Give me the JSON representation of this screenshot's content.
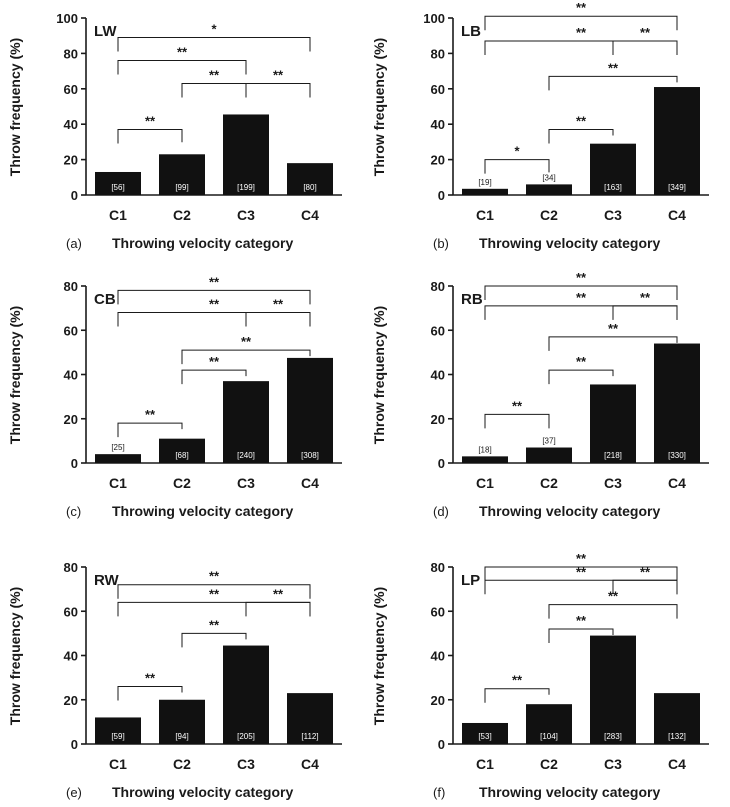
{
  "chart_data": [
    {
      "type": "bar",
      "panel_letter": "(a)",
      "label": "LW",
      "categories": [
        "C1",
        "C2",
        "C3",
        "C4"
      ],
      "values": [
        13,
        23,
        45.5,
        18
      ],
      "counts": [
        "[56]",
        "[99]",
        "[199]",
        "[80]"
      ],
      "ylim": [
        0,
        100
      ],
      "yticks": [
        0,
        20,
        40,
        60,
        80,
        100
      ],
      "ylabel": "Throw frequency (%)",
      "xlabel": "Throwing velocity category",
      "brackets": [
        {
          "from": 0,
          "to": 1,
          "y": 37,
          "text": "**"
        },
        {
          "from": 1,
          "to": 2,
          "y": 63,
          "text": "**"
        },
        {
          "from": 2,
          "to": 3,
          "y": 63,
          "text": "**"
        },
        {
          "from": 0,
          "to": 2,
          "y": 76,
          "text": "**"
        },
        {
          "from": 0,
          "to": 3,
          "y": 89,
          "text": "*"
        }
      ]
    },
    {
      "type": "bar",
      "panel_letter": "(b)",
      "label": "LB",
      "categories": [
        "C1",
        "C2",
        "C3",
        "C4"
      ],
      "values": [
        3.5,
        6,
        29,
        61
      ],
      "counts": [
        "[19]",
        "[34]",
        "[163]",
        "[349]"
      ],
      "ylim": [
        0,
        100
      ],
      "yticks": [
        0,
        20,
        40,
        60,
        80,
        100
      ],
      "ylabel": "Throw frequency (%)",
      "xlabel": "Throwing velocity category",
      "brackets": [
        {
          "from": 0,
          "to": 1,
          "y": 20,
          "text": "*"
        },
        {
          "from": 1,
          "to": 2,
          "y": 37,
          "text": "**"
        },
        {
          "from": 1,
          "to": 3,
          "y": 67,
          "text": "**"
        },
        {
          "from": 0,
          "to": 3,
          "y": 87,
          "text": "**"
        },
        {
          "from": 2,
          "to": 3,
          "y": 87,
          "text": "**"
        },
        {
          "from": 0,
          "to": 3,
          "y": 101,
          "text": "**"
        }
      ]
    },
    {
      "type": "bar",
      "panel_letter": "(c)",
      "label": "CB",
      "categories": [
        "C1",
        "C2",
        "C3",
        "C4"
      ],
      "values": [
        4,
        11,
        37,
        47.5
      ],
      "counts": [
        "[25]",
        "[68]",
        "[240]",
        "[308]"
      ],
      "ylim": [
        0,
        80
      ],
      "yticks": [
        0,
        20,
        40,
        60,
        80
      ],
      "ylabel": "Throw frequency (%)",
      "xlabel": "Throwing velocity category",
      "brackets": [
        {
          "from": 0,
          "to": 1,
          "y": 18,
          "text": "**"
        },
        {
          "from": 1,
          "to": 2,
          "y": 42,
          "text": "**"
        },
        {
          "from": 1,
          "to": 3,
          "y": 51,
          "text": "**"
        },
        {
          "from": 0,
          "to": 3,
          "y": 68,
          "text": "**"
        },
        {
          "from": 2,
          "to": 3,
          "y": 68,
          "text": "**"
        },
        {
          "from": 0,
          "to": 3,
          "y": 78,
          "text": "**"
        }
      ]
    },
    {
      "type": "bar",
      "panel_letter": "(d)",
      "label": "RB",
      "categories": [
        "C1",
        "C2",
        "C3",
        "C4"
      ],
      "values": [
        3,
        7,
        35.5,
        54
      ],
      "counts": [
        "[18]",
        "[37]",
        "[218]",
        "[330]"
      ],
      "ylim": [
        0,
        80
      ],
      "yticks": [
        0,
        20,
        40,
        60,
        80
      ],
      "ylabel": "Throw frequency (%)",
      "xlabel": "Throwing velocity category",
      "brackets": [
        {
          "from": 0,
          "to": 1,
          "y": 22,
          "text": "**"
        },
        {
          "from": 1,
          "to": 2,
          "y": 42,
          "text": "**"
        },
        {
          "from": 1,
          "to": 3,
          "y": 57,
          "text": "**"
        },
        {
          "from": 0,
          "to": 3,
          "y": 71,
          "text": "**"
        },
        {
          "from": 2,
          "to": 3,
          "y": 71,
          "text": "**"
        },
        {
          "from": 0,
          "to": 3,
          "y": 80,
          "text": "**"
        }
      ]
    },
    {
      "type": "bar",
      "panel_letter": "(e)",
      "label": "RW",
      "categories": [
        "C1",
        "C2",
        "C3",
        "C4"
      ],
      "values": [
        12,
        20,
        44.5,
        23
      ],
      "counts": [
        "[59]",
        "[94]",
        "[205]",
        "[112]"
      ],
      "ylim": [
        0,
        80
      ],
      "yticks": [
        0,
        20,
        40,
        60,
        80
      ],
      "ylabel": "Throw frequency (%)",
      "xlabel": "Throwing velocity category",
      "brackets": [
        {
          "from": 0,
          "to": 1,
          "y": 26,
          "text": "**"
        },
        {
          "from": 1,
          "to": 2,
          "y": 50,
          "text": "**"
        },
        {
          "from": 0,
          "to": 3,
          "y": 64,
          "text": "**"
        },
        {
          "from": 2,
          "to": 3,
          "y": 64,
          "text": "**"
        },
        {
          "from": 0,
          "to": 3,
          "y": 72,
          "text": "**"
        }
      ]
    },
    {
      "type": "bar",
      "panel_letter": "(f)",
      "label": "LP",
      "categories": [
        "C1",
        "C2",
        "C3",
        "C4"
      ],
      "values": [
        9.5,
        18,
        49,
        23
      ],
      "counts": [
        "[53]",
        "[104]",
        "[283]",
        "[132]"
      ],
      "ylim": [
        0,
        80
      ],
      "yticks": [
        0,
        20,
        40,
        60,
        80
      ],
      "ylabel": "Throw frequency (%)",
      "xlabel": "Throwing velocity category",
      "brackets": [
        {
          "from": 0,
          "to": 1,
          "y": 25,
          "text": "**"
        },
        {
          "from": 1,
          "to": 2,
          "y": 52,
          "text": "**"
        },
        {
          "from": 1,
          "to": 3,
          "y": 63,
          "text": "**"
        },
        {
          "from": 0,
          "to": 3,
          "y": 74,
          "text": "**"
        },
        {
          "from": 2,
          "to": 3,
          "y": 74,
          "text": "**"
        },
        {
          "from": 0,
          "to": 3,
          "y": 80,
          "text": "**"
        }
      ]
    }
  ]
}
